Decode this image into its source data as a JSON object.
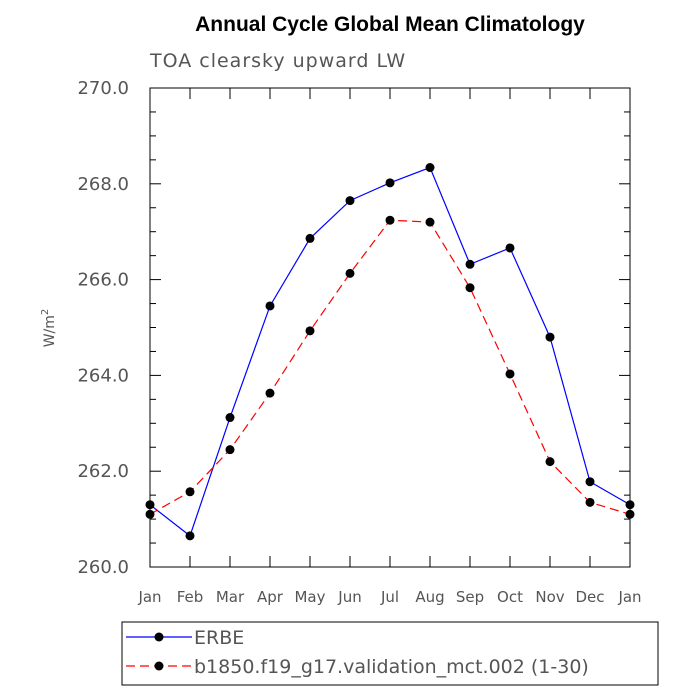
{
  "chart_data": {
    "type": "line",
    "title": "Annual Cycle Global Mean Climatology",
    "subtitle": "TOA clearsky upward LW",
    "xlabel": "",
    "ylabel": "W/m",
    "ylabel_superscript": "2",
    "ylim": [
      260.0,
      270.0
    ],
    "yticks": [
      "260.0",
      "262.0",
      "264.0",
      "266.0",
      "268.0",
      "270.0"
    ],
    "categories": [
      "Jan",
      "Feb",
      "Mar",
      "Apr",
      "May",
      "Jun",
      "Jul",
      "Aug",
      "Sep",
      "Oct",
      "Nov",
      "Dec",
      "Jan"
    ],
    "series": [
      {
        "name": "ERBE",
        "color": "#0000ff",
        "dash": "solid",
        "values": [
          261.3,
          260.65,
          263.12,
          265.45,
          266.86,
          267.65,
          268.02,
          268.34,
          266.32,
          266.66,
          264.8,
          261.78,
          261.3
        ]
      },
      {
        "name": "b1850.f19_g17.validation_mct.002 (1-30)",
        "color": "#ff0000",
        "dash": "dashed",
        "values": [
          261.1,
          261.57,
          262.45,
          263.63,
          264.93,
          266.13,
          267.24,
          267.2,
          265.83,
          264.03,
          262.2,
          261.35,
          261.1
        ]
      }
    ],
    "legend_position": "bottom-left"
  }
}
